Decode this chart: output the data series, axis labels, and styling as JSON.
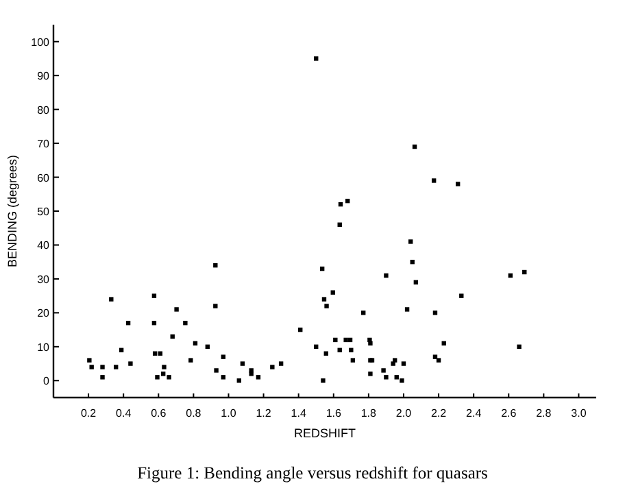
{
  "chart_data": {
    "type": "scatter",
    "title": "Figure 1: Bending angle versus redshift for quasars",
    "xlabel": "REDSHIFT",
    "ylabel": "BENDING (degrees)",
    "marker": "square",
    "grid": false,
    "xlim": [
      0,
      3.1
    ],
    "ylim": [
      -5,
      105
    ],
    "xticks": [
      0.2,
      0.4,
      0.6,
      0.8,
      {
        "value": 1,
        "label": "1.0"
      },
      1.2,
      1.4,
      1.6,
      1.8,
      {
        "value": 2,
        "label": "2.0"
      },
      2.2,
      2.4,
      2.6,
      2.8,
      {
        "value": 3,
        "label": "3.0"
      }
    ],
    "yticks": [
      0,
      10,
      20,
      30,
      40,
      50,
      60,
      70,
      80,
      90,
      100
    ],
    "series": [
      {
        "color": "#000000",
        "x": [
          0.205,
          0.218,
          0.28,
          0.28,
          0.33,
          0.357,
          0.388,
          0.427,
          0.44,
          0.575,
          0.575,
          0.58,
          0.593,
          0.61,
          0.627,
          0.632,
          0.66,
          0.68,
          0.703,
          0.753,
          0.784,
          0.81,
          0.88,
          0.925,
          0.925,
          0.93,
          0.97,
          0.97,
          1.06,
          1.08,
          1.13,
          1.13,
          1.17,
          1.25,
          1.3,
          1.41,
          1.5,
          1.5,
          2.063,
          2.173,
          2.31,
          1.68,
          1.64,
          1.635,
          2.04,
          2.05,
          1.535,
          1.9,
          2.07,
          2.33,
          1.596,
          1.546,
          1.56,
          2.02,
          1.77,
          2.18,
          1.61,
          1.67,
          1.695,
          1.7,
          1.635,
          1.557,
          1.806,
          1.81,
          2.23,
          1.71,
          1.81,
          1.82,
          2.18,
          2.2,
          1.81,
          1.885,
          1.9,
          1.94,
          1.95,
          2.0,
          1.96,
          1.99,
          1.54,
          2.61,
          2.69,
          2.66
        ],
        "values": [
          6,
          4,
          4,
          1,
          24,
          4,
          9,
          17,
          5,
          25,
          17,
          8,
          1,
          8,
          2,
          4,
          1,
          13,
          21,
          17,
          6,
          11,
          10,
          34,
          22,
          3,
          7,
          1,
          0,
          5,
          3,
          2,
          1,
          4,
          5,
          15,
          10,
          95,
          69,
          59,
          58,
          53,
          52,
          46,
          41,
          35,
          33,
          31,
          29,
          25,
          26,
          24,
          22,
          21,
          20,
          20,
          12,
          12,
          12,
          9,
          9,
          8,
          12,
          11,
          11,
          6,
          6,
          6,
          7,
          6,
          2,
          3,
          1,
          5,
          6,
          5,
          1,
          0,
          0,
          31,
          32,
          10
        ]
      }
    ]
  }
}
